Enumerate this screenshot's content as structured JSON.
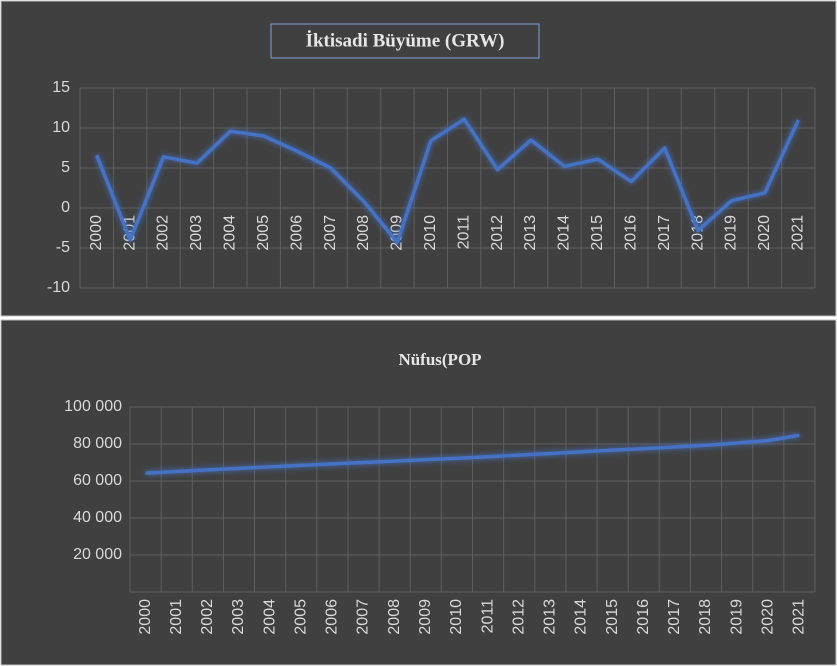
{
  "chart_data": [
    {
      "type": "line",
      "title": "İktisadi Büyüme (GRW)",
      "categories": [
        "2000",
        "2001",
        "2002",
        "2003",
        "2004",
        "2005",
        "2006",
        "2007",
        "2008",
        "2009",
        "2010",
        "2011",
        "2012",
        "2013",
        "2014",
        "2015",
        "2016",
        "2017",
        "2018",
        "2019",
        "2020",
        "2021"
      ],
      "values": [
        6.6,
        -4,
        6.4,
        5.6,
        9.6,
        9.0,
        7.1,
        5.0,
        0.8,
        -4.3,
        8.4,
        11.1,
        4.8,
        8.5,
        5.2,
        6.1,
        3.3,
        7.5,
        -2.8,
        0.9,
        1.9,
        11.0
      ],
      "color": "#4472c4",
      "ylim": [
        -10,
        15
      ],
      "yticks": [
        -10,
        -5,
        0,
        5,
        10,
        15
      ],
      "grid": true
    },
    {
      "type": "line",
      "title": "Nüfus(POP",
      "categories": [
        "2000",
        "2001",
        "2002",
        "2003",
        "2004",
        "2005",
        "2006",
        "2007",
        "2008",
        "2009",
        "2010",
        "2011",
        "2012",
        "2013",
        "2014",
        "2015",
        "2016",
        "2017",
        "2018",
        "2019",
        "2020",
        "2021"
      ],
      "values": [
        64250,
        65130,
        65990,
        66830,
        67660,
        68470,
        69250,
        70010,
        70760,
        71540,
        72330,
        73140,
        74000,
        74890,
        75780,
        76670,
        77500,
        78360,
        79350,
        80550,
        81900,
        84700
      ],
      "color": "#4472c4",
      "ylim": [
        0,
        100000
      ],
      "yticks": [
        {
          "value": 20000,
          "label": "20 000"
        },
        {
          "value": 40000,
          "label": "40 000"
        },
        {
          "value": 60000,
          "label": "60 000"
        },
        {
          "value": 80000,
          "label": "80 000"
        },
        {
          "value": 100000,
          "label": "100 000"
        }
      ],
      "grid": true
    }
  ]
}
